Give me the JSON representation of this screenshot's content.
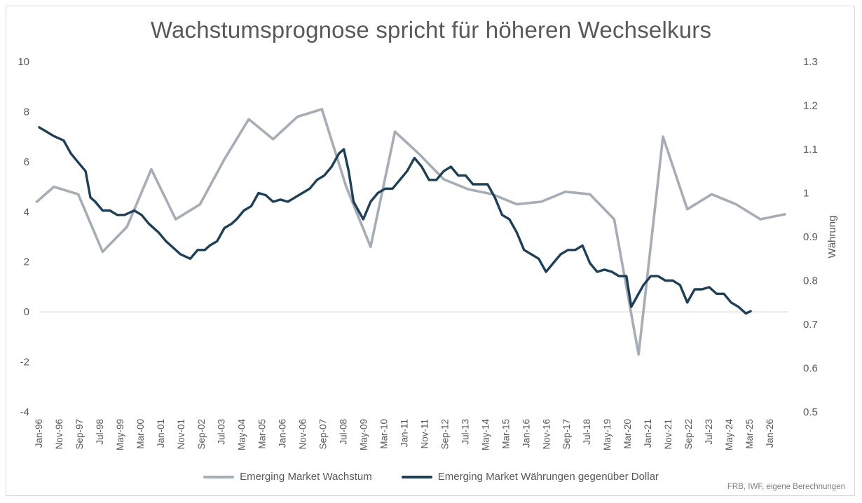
{
  "title": "Wachstumsprognose spricht für höheren Wechselkurs",
  "source": "FRB, IWF, eigene Berechnungen",
  "legend": {
    "growth": "Emerging Market Wachstum",
    "fx": "Emerging Market Währungen gegenüber Dollar"
  },
  "colors": {
    "growth": "#a6adb6",
    "fx": "#1d3f57",
    "zero_line": "#d0d0d0",
    "text": "#595959"
  },
  "chart_data": {
    "type": "line",
    "title": "Wachstumsprognose spricht für höheren Wechselkurs",
    "x_tick_labels": [
      "Jan-96",
      "Nov-96",
      "Sep-97",
      "Jul-98",
      "May-99",
      "Mar-00",
      "Jan-01",
      "Nov-01",
      "Sep-02",
      "Jul-03",
      "May-04",
      "Mar-05",
      "Jan-06",
      "Nov-06",
      "Sep-07",
      "Jul-08",
      "May-09",
      "Mar-10",
      "Jan-11",
      "Nov-11",
      "Sep-12",
      "Jul-13",
      "May-14",
      "Mar-15",
      "Jan-16",
      "Nov-16",
      "Sep-17",
      "Jul-18",
      "May-19",
      "Mar-20",
      "Jan-21",
      "Nov-21",
      "Sep-22",
      "Jul-23",
      "May-24",
      "Mar-25",
      "Jan-26"
    ],
    "y_left": {
      "ticks": [
        "10",
        "8",
        "6",
        "4",
        "2",
        "0",
        "-2",
        "-4"
      ],
      "range": [
        -4,
        10
      ]
    },
    "y_right": {
      "label": "Währung",
      "ticks": [
        "1.3",
        "1.2",
        "1.1",
        "1",
        "0.9",
        "0.8",
        "0.7",
        "0.6",
        "0.5"
      ],
      "range": [
        0.5,
        1.3
      ]
    },
    "grid": false,
    "legend_position": "bottom",
    "series": [
      {
        "name": "Emerging Market Wachstum",
        "axis": "left",
        "x": [
          1995.9,
          1996.6,
          1997.6,
          1998.6,
          1999.6,
          2000.6,
          2001.6,
          2002.6,
          2003.6,
          2004.6,
          2005.6,
          2006.6,
          2007.6,
          2008.6,
          2009.6,
          2010.6,
          2011.6,
          2012.6,
          2013.6,
          2014.6,
          2015.6,
          2016.6,
          2017.6,
          2018.6,
          2019.6,
          2020.6,
          2021.6,
          2022.6,
          2023.6,
          2024.6,
          2025.6,
          2026.6
        ],
        "values": [
          4.4,
          5.0,
          4.7,
          2.4,
          3.4,
          5.7,
          3.7,
          4.3,
          6.1,
          7.7,
          6.9,
          7.8,
          8.1,
          5.0,
          2.6,
          7.2,
          6.3,
          5.3,
          4.9,
          4.7,
          4.3,
          4.4,
          4.8,
          4.7,
          3.7,
          -1.7,
          7.0,
          4.1,
          4.7,
          4.3,
          3.7,
          3.9
        ]
      },
      {
        "name": "Emerging Market Währungen gegenüber Dollar",
        "axis": "right",
        "x": [
          1996.0,
          1996.3,
          1996.6,
          1997.0,
          1997.3,
          1997.6,
          1997.9,
          1998.1,
          1998.3,
          1998.6,
          1998.9,
          1999.2,
          1999.5,
          1999.9,
          2000.2,
          2000.5,
          2000.9,
          2001.2,
          2001.5,
          2001.8,
          2002.2,
          2002.5,
          2002.8,
          2003.0,
          2003.3,
          2003.6,
          2003.9,
          2004.1,
          2004.4,
          2004.7,
          2005.0,
          2005.3,
          2005.6,
          2005.9,
          2006.2,
          2006.5,
          2006.8,
          2007.1,
          2007.4,
          2007.7,
          2008.0,
          2008.3,
          2008.5,
          2008.7,
          2008.9,
          2009.1,
          2009.3,
          2009.6,
          2009.9,
          2010.2,
          2010.5,
          2010.8,
          2011.1,
          2011.4,
          2011.7,
          2012.0,
          2012.3,
          2012.6,
          2012.9,
          2013.2,
          2013.5,
          2013.8,
          2014.1,
          2014.4,
          2014.7,
          2015.0,
          2015.3,
          2015.6,
          2015.9,
          2016.2,
          2016.5,
          2016.8,
          2017.1,
          2017.4,
          2017.7,
          2018.0,
          2018.3,
          2018.6,
          2018.9,
          2019.2,
          2019.5,
          2019.8,
          2020.1,
          2020.3,
          2020.5,
          2020.8,
          2021.1,
          2021.4,
          2021.7,
          2022.0,
          2022.3,
          2022.6,
          2022.9,
          2023.2,
          2023.5,
          2023.8,
          2024.1,
          2024.4,
          2024.7,
          2025.0,
          2025.2
        ],
        "values": [
          1.15,
          1.14,
          1.13,
          1.12,
          1.09,
          1.07,
          1.05,
          0.99,
          0.98,
          0.96,
          0.96,
          0.95,
          0.95,
          0.96,
          0.95,
          0.93,
          0.91,
          0.89,
          0.875,
          0.86,
          0.85,
          0.87,
          0.87,
          0.88,
          0.89,
          0.92,
          0.93,
          0.94,
          0.96,
          0.97,
          1.0,
          0.995,
          0.98,
          0.985,
          0.98,
          0.99,
          1.0,
          1.01,
          1.03,
          1.04,
          1.06,
          1.09,
          1.1,
          1.05,
          0.98,
          0.96,
          0.94,
          0.98,
          1.0,
          1.01,
          1.01,
          1.03,
          1.05,
          1.08,
          1.06,
          1.03,
          1.03,
          1.05,
          1.06,
          1.04,
          1.04,
          1.02,
          1.02,
          1.02,
          0.99,
          0.95,
          0.94,
          0.91,
          0.87,
          0.86,
          0.85,
          0.82,
          0.84,
          0.86,
          0.87,
          0.87,
          0.88,
          0.84,
          0.82,
          0.825,
          0.82,
          0.81,
          0.81,
          0.74,
          0.76,
          0.79,
          0.81,
          0.81,
          0.8,
          0.8,
          0.79,
          0.75,
          0.78,
          0.78,
          0.785,
          0.77,
          0.77,
          0.75,
          0.74,
          0.725,
          0.73
        ]
      }
    ]
  }
}
